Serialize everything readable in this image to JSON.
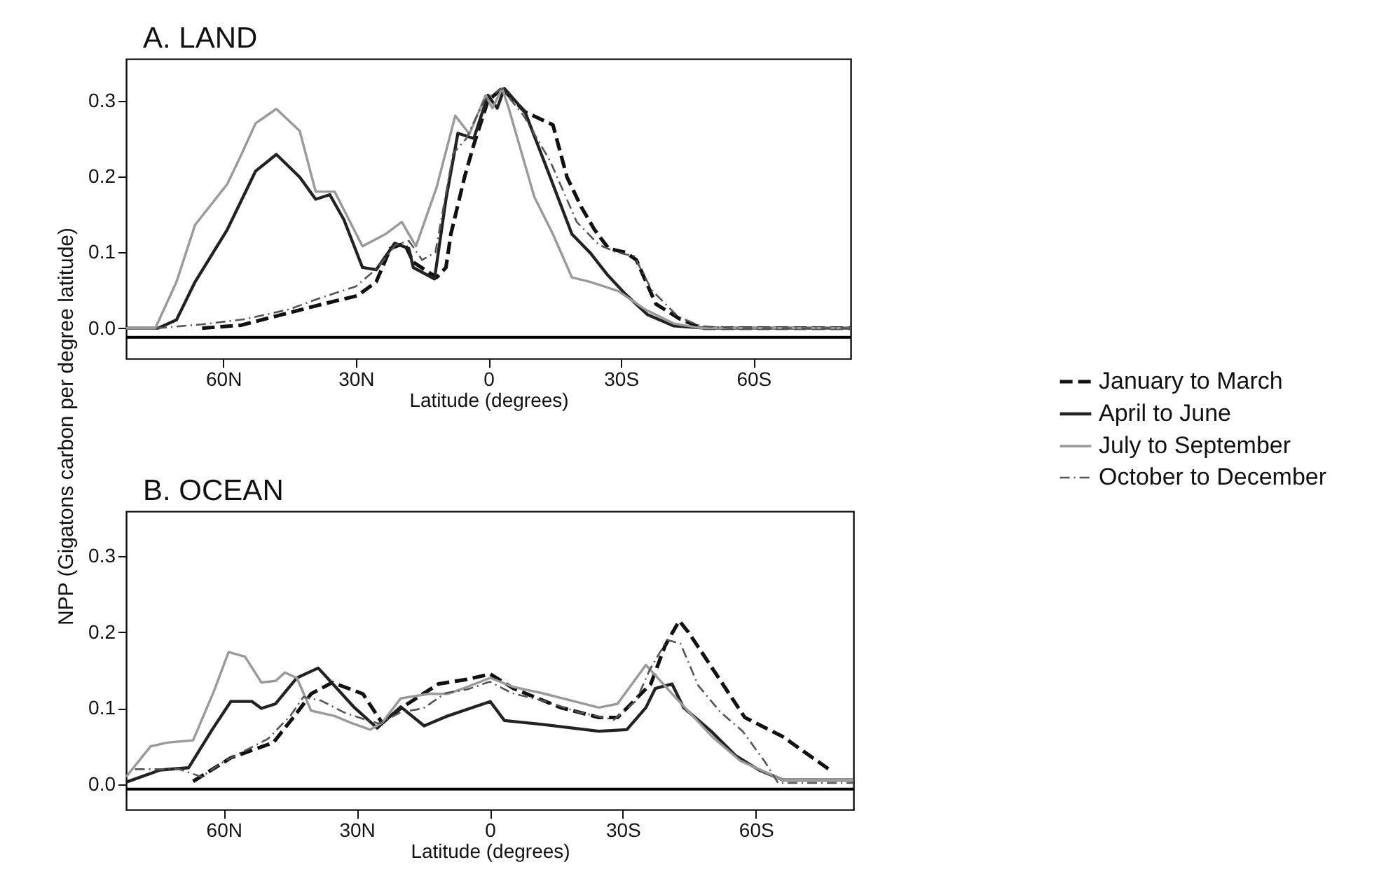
{
  "chart_data": [
    {
      "type": "line",
      "title": "A. LAND",
      "xlabel": "Latitude (degrees)",
      "ylabel": "NPP (Gigatons carbon per degree latitude)",
      "legend": "right",
      "grid": false,
      "marker": "none",
      "xlim": [
        82,
        -82
      ],
      "xticks": [
        {
          "value": 60,
          "label": "60N"
        },
        {
          "value": 30,
          "label": "30N"
        },
        0,
        {
          "value": -30,
          "label": "30S"
        },
        {
          "value": -60,
          "label": "60S"
        }
      ],
      "ylim": [
        -0.04,
        0.355
      ],
      "yticks": [
        {
          "value": 0,
          "label": "0.0"
        },
        0.1,
        0.2,
        0.3
      ],
      "ref_lines": [
        {
          "axis": "y",
          "value": -0.012,
          "color": "#000000"
        }
      ],
      "series": [
        {
          "name": "January to March",
          "color": "#111111",
          "line_style": "dashed",
          "x": [
            64.8,
            55.9,
            45.4,
            38,
            29.6,
            25.4,
            22.2,
            19,
            17,
            11.7,
            9.6,
            8.5,
            5.4,
            3.3,
            0.1,
            -3.1,
            -8.3,
            -14.6,
            -17.8,
            -21,
            -24,
            -27.2,
            -31,
            -33.5,
            -37.9,
            -43.1,
            -48.3,
            -82
          ],
          "values": [
            0,
            0.004,
            0.02,
            0.031,
            0.043,
            0.061,
            0.105,
            0.112,
            0.087,
            0.067,
            0.08,
            0.124,
            0.199,
            0.242,
            0.3,
            0.316,
            0.285,
            0.268,
            0.199,
            0.16,
            0.13,
            0.105,
            0.1,
            0.09,
            0.032,
            0.013,
            0,
            0
          ]
        },
        {
          "name": "April to June",
          "color": "#222222",
          "line_style": "solid",
          "x": [
            82,
            74.8,
            70.6,
            66.4,
            59.1,
            52.7,
            48,
            42.7,
            39.1,
            35.9,
            32.7,
            28.5,
            25.4,
            21.2,
            18,
            17,
            12.2,
            9.6,
            6.9,
            3.3,
            0.1,
            -2,
            -3.6,
            -8.3,
            -13.6,
            -18.9,
            -23.1,
            -27,
            -31,
            -36,
            -42,
            -49,
            -82
          ],
          "values": [
            0,
            0,
            0.011,
            0.061,
            0.13,
            0.207,
            0.229,
            0.199,
            0.17,
            0.176,
            0.143,
            0.08,
            0.077,
            0.112,
            0.105,
            0.08,
            0.065,
            0.17,
            0.257,
            0.25,
            0.307,
            0.29,
            0.316,
            0.285,
            0.205,
            0.124,
            0.099,
            0.07,
            0.045,
            0.018,
            0.003,
            0,
            0
          ]
        },
        {
          "name": "July to September",
          "color": "#9a9a9a",
          "line_style": "solid",
          "x": [
            82,
            75.4,
            70.6,
            66.4,
            59.1,
            55.9,
            52.7,
            48,
            42.7,
            39.1,
            34.8,
            28.5,
            23.3,
            19.6,
            16.4,
            11.7,
            7.5,
            4.3,
            0.6,
            -0.9,
            -3.1,
            -4.6,
            -10.4,
            -14.6,
            -18.9,
            -23.1,
            -29.4,
            -35.7,
            -42,
            -48.3,
            -82
          ],
          "values": [
            0,
            0,
            0.061,
            0.136,
            0.19,
            0.229,
            0.27,
            0.289,
            0.26,
            0.18,
            0.18,
            0.108,
            0.124,
            0.14,
            0.108,
            0.186,
            0.28,
            0.256,
            0.307,
            0.29,
            0.316,
            0.29,
            0.173,
            0.124,
            0.067,
            0.061,
            0.049,
            0.024,
            0.006,
            0,
            0
          ]
        },
        {
          "name": "October to December",
          "color": "#555555",
          "line_style": "dotted",
          "x": [
            75,
            65,
            55,
            45,
            38,
            30,
            25,
            21,
            18,
            15,
            12,
            8,
            5,
            1,
            -3,
            -8,
            -14,
            -20,
            -25,
            -29,
            -33,
            -37,
            -43,
            -48,
            -55,
            -82
          ],
          "values": [
            0,
            0.005,
            0.012,
            0.025,
            0.04,
            0.055,
            0.08,
            0.11,
            0.115,
            0.09,
            0.1,
            0.23,
            0.25,
            0.3,
            0.316,
            0.28,
            0.22,
            0.14,
            0.11,
            0.1,
            0.095,
            0.05,
            0.015,
            0.003,
            0,
            0
          ]
        }
      ]
    },
    {
      "type": "line",
      "title": "B. OCEAN",
      "xlabel": "Latitude (degrees)",
      "grid": false,
      "marker": "none",
      "xlim": [
        82,
        -82
      ],
      "xticks": [
        {
          "value": 60,
          "label": "60N"
        },
        {
          "value": 30,
          "label": "30N"
        },
        0,
        {
          "value": -30,
          "label": "30S"
        },
        {
          "value": -60,
          "label": "60S"
        }
      ],
      "ylim": [
        -0.033,
        0.359
      ],
      "yticks": [
        {
          "value": 0,
          "label": "0.0"
        },
        0.1,
        0.2,
        0.3
      ],
      "ref_lines": [
        {
          "axis": "y",
          "value": -0.006,
          "color": "#000000"
        }
      ],
      "series": [
        {
          "color": "#111111",
          "line_style": "dashed",
          "x": [
            66.9,
            58.4,
            48.8,
            43.5,
            40.3,
            35.5,
            28.6,
            24.3,
            20.1,
            11.6,
            5.2,
            -0.1,
            -5.4,
            -16,
            -24.6,
            -28.8,
            -36.3,
            -39.5,
            -42.7,
            -44.8,
            -49,
            -57.5,
            -66,
            -76.7
          ],
          "values": [
            0.004,
            0.035,
            0.055,
            0.094,
            0.119,
            0.134,
            0.119,
            0.081,
            0.1,
            0.132,
            0.138,
            0.145,
            0.126,
            0.101,
            0.088,
            0.088,
            0.132,
            0.182,
            0.215,
            0.2,
            0.163,
            0.088,
            0.063,
            0.019
          ]
        },
        {
          "color": "#222222",
          "line_style": "solid",
          "x": [
            82,
            74.3,
            67.9,
            62.6,
            58.4,
            53.6,
            51.5,
            48.3,
            43.5,
            38.7,
            37.1,
            30.7,
            25.4,
            20.1,
            14.8,
            9.5,
            -0.1,
            -3.3,
            -11.8,
            -24.6,
            -30.9,
            -35.2,
            -37.3,
            -41.1,
            -43.7,
            -50.1,
            -55.4,
            -60.7,
            -66,
            -82
          ],
          "values": [
            0.003,
            0.019,
            0.022,
            0.072,
            0.109,
            0.109,
            0.1,
            0.106,
            0.14,
            0.153,
            0.143,
            0.102,
            0.074,
            0.102,
            0.077,
            0.09,
            0.109,
            0.084,
            0.079,
            0.07,
            0.072,
            0.101,
            0.126,
            0.132,
            0.101,
            0.069,
            0.038,
            0.019,
            0.006,
            0.006
          ]
        },
        {
          "color": "#9a9a9a",
          "line_style": "solid",
          "x": [
            82,
            76.5,
            72.7,
            66.9,
            62.1,
            58.9,
            55.2,
            51.5,
            48.3,
            46.2,
            43.5,
            40.3,
            35,
            31.3,
            27,
            24.3,
            20.1,
            13.7,
            9.5,
            5.2,
            -0.1,
            -5.4,
            -11.8,
            -24.6,
            -28.8,
            -35.2,
            -41.6,
            -50.1,
            -56.5,
            -66,
            -82
          ],
          "values": [
            0.01,
            0.05,
            0.055,
            0.058,
            0.124,
            0.174,
            0.168,
            0.134,
            0.136,
            0.147,
            0.14,
            0.097,
            0.09,
            0.081,
            0.072,
            0.081,
            0.113,
            0.119,
            0.119,
            0.128,
            0.14,
            0.128,
            0.12,
            0.101,
            0.106,
            0.157,
            0.116,
            0.063,
            0.031,
            0.006,
            0.006
          ]
        },
        {
          "color": "#555555",
          "line_style": "dotted",
          "x": [
            80,
            70,
            65,
            60,
            55,
            50,
            45,
            42,
            38,
            33,
            28,
            25,
            20,
            15,
            10,
            5,
            0,
            -5,
            -12,
            -20,
            -28,
            -33,
            -36,
            -40,
            -43,
            -47,
            -52,
            -57,
            -62,
            -65,
            -82
          ],
          "values": [
            0.02,
            0.02,
            0.01,
            0.03,
            0.045,
            0.06,
            0.09,
            0.115,
            0.11,
            0.095,
            0.085,
            0.08,
            0.095,
            0.1,
            0.12,
            0.125,
            0.135,
            0.12,
            0.11,
            0.095,
            0.085,
            0.11,
            0.15,
            0.19,
            0.185,
            0.13,
            0.095,
            0.07,
            0.03,
            0.002,
            0.002
          ]
        }
      ]
    }
  ]
}
